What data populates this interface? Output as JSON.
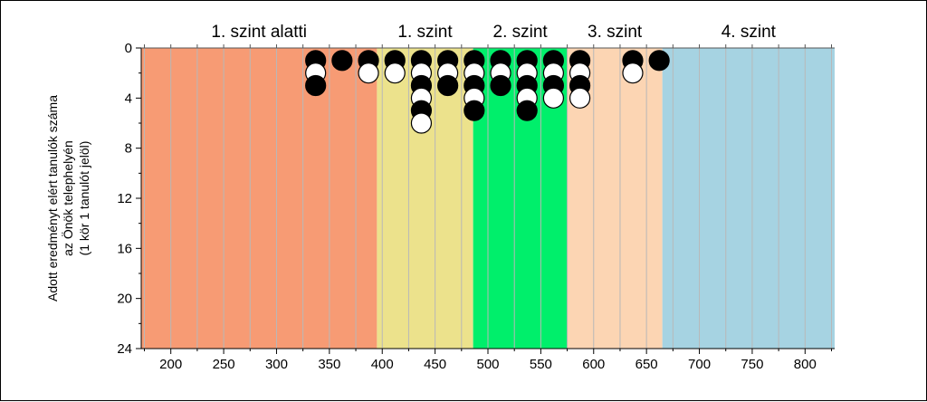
{
  "chart_data": {
    "type": "scatter",
    "ylabel_lines": [
      "Adott eredményt elért tanulók száma",
      "az Önök telephelyén",
      "(1 kör 1 tanulót jelöl)"
    ],
    "xlim": [
      172,
      828
    ],
    "ylim": [
      0,
      24
    ],
    "y_inverted": true,
    "x_ticks": [
      200,
      250,
      300,
      350,
      400,
      450,
      500,
      550,
      600,
      650,
      700,
      750,
      800
    ],
    "y_ticks": [
      0,
      4,
      8,
      12,
      16,
      20,
      24
    ],
    "grid": {
      "vertical_step": 25,
      "horizontal": false
    },
    "levels": [
      {
        "label": "1. szint alatti",
        "from": 172,
        "to": 395,
        "color": "#f79b74"
      },
      {
        "label": "1. szint",
        "from": 395,
        "to": 486,
        "color": "#ece28c"
      },
      {
        "label": "2. szint",
        "from": 486,
        "to": 575,
        "color": "#00ef6b"
      },
      {
        "label": "3. szint",
        "from": 575,
        "to": 665,
        "color": "#fcd5b3"
      },
      {
        "label": "4. szint",
        "from": 665,
        "to": 828,
        "color": "#a6d3e2"
      }
    ],
    "columns": [
      {
        "x": 337,
        "count": 3
      },
      {
        "x": 362,
        "count": 1
      },
      {
        "x": 387,
        "count": 2
      },
      {
        "x": 412,
        "count": 2
      },
      {
        "x": 437,
        "count": 6
      },
      {
        "x": 462,
        "count": 3
      },
      {
        "x": 487,
        "count": 5
      },
      {
        "x": 512,
        "count": 3
      },
      {
        "x": 537,
        "count": 5
      },
      {
        "x": 562,
        "count": 4
      },
      {
        "x": 587,
        "count": 4
      },
      {
        "x": 637,
        "count": 2
      },
      {
        "x": 662,
        "count": 1
      }
    ],
    "marker_colors": {
      "odd": "#000000",
      "even": "#ffffff"
    }
  }
}
